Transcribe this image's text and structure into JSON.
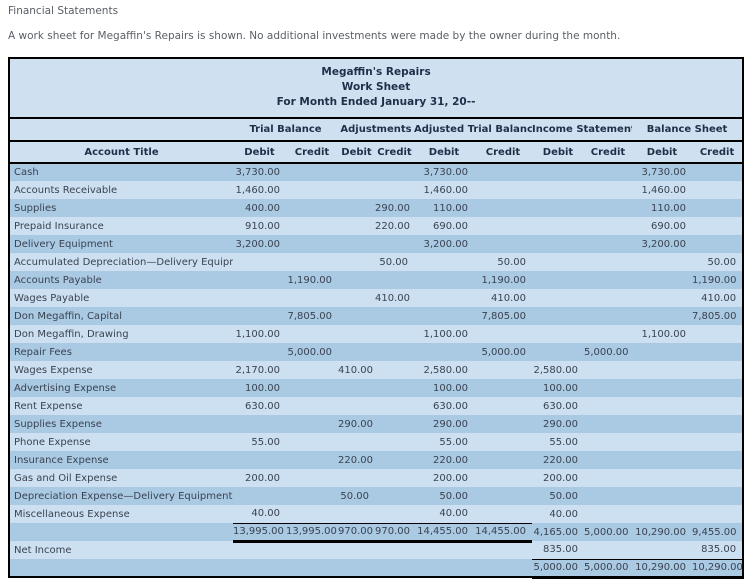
{
  "page": {
    "heading": "Financial Statements",
    "description": "A work sheet for Megaffin's Repairs is shown. No additional investments were made by the owner during the month."
  },
  "colors": {
    "stripe_dark": "#aac9e3",
    "stripe_light": "#cde0f1",
    "header_bg": "#cfe1f1",
    "rule": "#000000",
    "header_text": "#1e3048",
    "body_text": "#3a4350"
  },
  "table": {
    "title": "Megaffin's Repairs",
    "subtitle": "Work Sheet",
    "period": "For Month Ended January 31, 20--",
    "account_title_header": "Account Title",
    "groups": [
      "Trial Balance",
      "Adjustments",
      "Adjusted Trial Balance",
      "Income Statement",
      "Balance Sheet"
    ],
    "sub_headers": [
      "Debit",
      "Credit",
      "Debit",
      "Credit",
      "Debit",
      "Credit",
      "Debit",
      "Credit",
      "Debit",
      "Credit"
    ],
    "rows": [
      {
        "kind": "account",
        "title": "Cash",
        "cells": [
          "3,730.00",
          "",
          "",
          "",
          "3,730.00",
          "",
          "",
          "",
          "3,730.00",
          ""
        ]
      },
      {
        "kind": "account",
        "title": "Accounts Receivable",
        "cells": [
          "1,460.00",
          "",
          "",
          "",
          "1,460.00",
          "",
          "",
          "",
          "1,460.00",
          ""
        ]
      },
      {
        "kind": "account",
        "title": "Supplies",
        "cells": [
          "400.00",
          "",
          "",
          "290.00",
          "110.00",
          "",
          "",
          "",
          "110.00",
          ""
        ]
      },
      {
        "kind": "account",
        "title": "Prepaid Insurance",
        "cells": [
          "910.00",
          "",
          "",
          "220.00",
          "690.00",
          "",
          "",
          "",
          "690.00",
          ""
        ]
      },
      {
        "kind": "account",
        "title": "Delivery Equipment",
        "cells": [
          "3,200.00",
          "",
          "",
          "",
          "3,200.00",
          "",
          "",
          "",
          "3,200.00",
          ""
        ]
      },
      {
        "kind": "account",
        "title": "Accumulated Depreciation—Delivery Equipment",
        "cells": [
          "",
          "",
          "",
          "50.00",
          "",
          "50.00",
          "",
          "",
          "",
          "50.00"
        ]
      },
      {
        "kind": "account",
        "title": "Accounts Payable",
        "cells": [
          "",
          "1,190.00",
          "",
          "",
          "",
          "1,190.00",
          "",
          "",
          "",
          "1,190.00"
        ]
      },
      {
        "kind": "account",
        "title": "Wages Payable",
        "cells": [
          "",
          "",
          "",
          "410.00",
          "",
          "410.00",
          "",
          "",
          "",
          "410.00"
        ]
      },
      {
        "kind": "account",
        "title": "Don Megaffin, Capital",
        "cells": [
          "",
          "7,805.00",
          "",
          "",
          "",
          "7,805.00",
          "",
          "",
          "",
          "7,805.00"
        ]
      },
      {
        "kind": "account",
        "title": "Don Megaffin, Drawing",
        "cells": [
          "1,100.00",
          "",
          "",
          "",
          "1,100.00",
          "",
          "",
          "",
          "1,100.00",
          ""
        ]
      },
      {
        "kind": "account",
        "title": "Repair Fees",
        "cells": [
          "",
          "5,000.00",
          "",
          "",
          "",
          "5,000.00",
          "",
          "5,000.00",
          "",
          ""
        ]
      },
      {
        "kind": "account",
        "title": "Wages Expense",
        "cells": [
          "2,170.00",
          "",
          "410.00",
          "",
          "2,580.00",
          "",
          "2,580.00",
          "",
          "",
          ""
        ]
      },
      {
        "kind": "account",
        "title": "Advertising Expense",
        "cells": [
          "100.00",
          "",
          "",
          "",
          "100.00",
          "",
          "100.00",
          "",
          "",
          ""
        ]
      },
      {
        "kind": "account",
        "title": "Rent Expense",
        "cells": [
          "630.00",
          "",
          "",
          "",
          "630.00",
          "",
          "630.00",
          "",
          "",
          ""
        ]
      },
      {
        "kind": "account",
        "title": "Supplies Expense",
        "cells": [
          "",
          "",
          "290.00",
          "",
          "290.00",
          "",
          "290.00",
          "",
          "",
          ""
        ]
      },
      {
        "kind": "account",
        "title": "Phone Expense",
        "cells": [
          "55.00",
          "",
          "",
          "",
          "55.00",
          "",
          "55.00",
          "",
          "",
          ""
        ]
      },
      {
        "kind": "account",
        "title": "Insurance Expense",
        "cells": [
          "",
          "",
          "220.00",
          "",
          "220.00",
          "",
          "220.00",
          "",
          "",
          ""
        ]
      },
      {
        "kind": "account",
        "title": "Gas and Oil Expense",
        "cells": [
          "200.00",
          "",
          "",
          "",
          "200.00",
          "",
          "200.00",
          "",
          "",
          ""
        ]
      },
      {
        "kind": "account",
        "title": "Depreciation Expense—Delivery Equipment",
        "cells": [
          "",
          "",
          "50.00",
          "",
          "50.00",
          "",
          "50.00",
          "",
          "",
          ""
        ]
      },
      {
        "kind": "account",
        "title": "Miscellaneous Expense",
        "cells": [
          "40.00",
          "",
          "",
          "",
          "40.00",
          "",
          "40.00",
          "",
          "",
          ""
        ]
      },
      {
        "kind": "totals",
        "title": "",
        "cells": [
          "13,995.00",
          "13,995.00",
          "970.00",
          "970.00",
          "14,455.00",
          "14,455.00",
          "4,165.00",
          "5,000.00",
          "10,290.00",
          "9,455.00"
        ]
      },
      {
        "kind": "net_income",
        "title": "Net Income",
        "cells": [
          "",
          "",
          "",
          "",
          "",
          "",
          "835.00",
          "",
          "",
          "835.00"
        ]
      },
      {
        "kind": "final",
        "title": "",
        "cells": [
          "",
          "",
          "",
          "",
          "",
          "",
          "5,000.00",
          "5,000.00",
          "10,290.00",
          "10,290.00"
        ]
      }
    ]
  }
}
